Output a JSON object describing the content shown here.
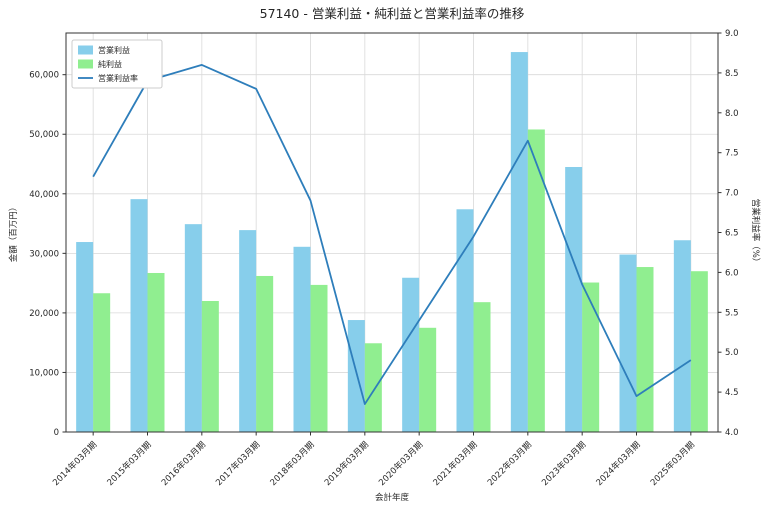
{
  "chart_data": {
    "type": "bar",
    "title": "57140 - 営業利益・純利益と営業利益率の推移",
    "xlabel": "会計年度",
    "ylabel_left": "金額（百万円）",
    "ylabel_right": "営業利益率（%）",
    "categories": [
      "2014年03月期",
      "2015年03月期",
      "2016年03月期",
      "2017年03月期",
      "2018年03月期",
      "2019年03月期",
      "2020年03月期",
      "2021年03月期",
      "2022年03月期",
      "2023年03月期",
      "2024年03月期",
      "2025年03月期"
    ],
    "series": [
      {
        "name": "営業利益",
        "type": "bar",
        "axis": "left",
        "color": "#87ceeb",
        "values": [
          31900,
          39100,
          34900,
          33900,
          31100,
          18800,
          25900,
          37400,
          63800,
          44500,
          29800,
          32200
        ]
      },
      {
        "name": "純利益",
        "type": "bar",
        "axis": "left",
        "color": "#90ee90",
        "values": [
          23300,
          26700,
          22000,
          26200,
          24700,
          14900,
          17500,
          21800,
          50800,
          25100,
          27700,
          27000
        ]
      },
      {
        "name": "営業利益率",
        "type": "line",
        "axis": "right",
        "color": "#2e7ebb",
        "values": [
          7.2,
          8.4,
          8.6,
          8.3,
          6.9,
          4.35,
          5.4,
          6.45,
          7.65,
          5.85,
          4.45,
          4.9
        ]
      }
    ],
    "ylim_left": [
      0,
      67000
    ],
    "yticks_left": [
      0,
      10000,
      20000,
      30000,
      40000,
      50000,
      60000
    ],
    "ylim_right": [
      4.0,
      9.0
    ],
    "yticks_right": [
      4.0,
      4.5,
      5.0,
      5.5,
      6.0,
      6.5,
      7.0,
      7.5,
      8.0,
      8.5,
      9.0
    ],
    "grid": true,
    "legend_position": "upper left",
    "colors": {
      "grid": "#d9d9d9",
      "spine": "#333333",
      "text": "#262626",
      "legend_border": "#cccccc",
      "background": "#ffffff"
    }
  }
}
